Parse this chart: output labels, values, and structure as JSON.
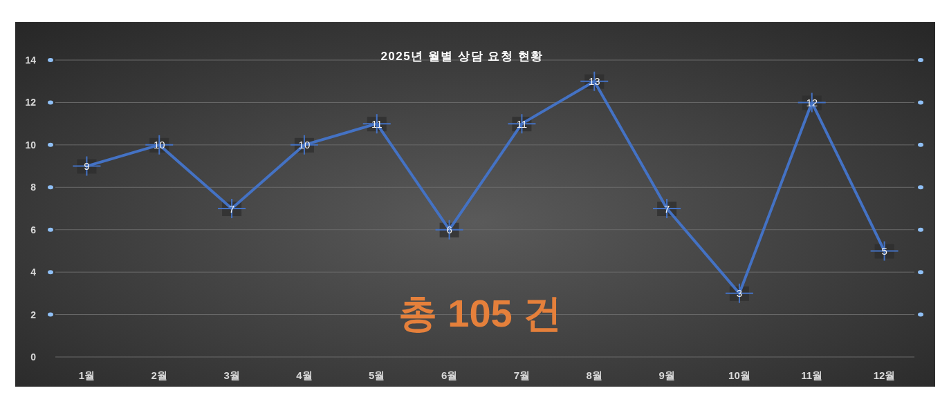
{
  "chart_data": {
    "type": "line",
    "title": "2025년 월별 상담 요청 현황",
    "categories": [
      "1월",
      "2월",
      "3월",
      "4월",
      "5월",
      "6월",
      "7월",
      "8월",
      "9월",
      "10월",
      "11월",
      "12월"
    ],
    "series": [
      {
        "color": "#4472c4",
        "values": [
          9,
          10,
          7,
          10,
          11,
          6,
          11,
          13,
          7,
          3,
          12,
          5
        ]
      }
    ],
    "ylim": [
      0,
      14
    ],
    "yticks": [
      0,
      2,
      4,
      6,
      8,
      10,
      12,
      14
    ],
    "grid": "y",
    "marker": "cross",
    "line_style": "solid",
    "data_labels": true,
    "annotations": [
      "총 105 건"
    ]
  }
}
